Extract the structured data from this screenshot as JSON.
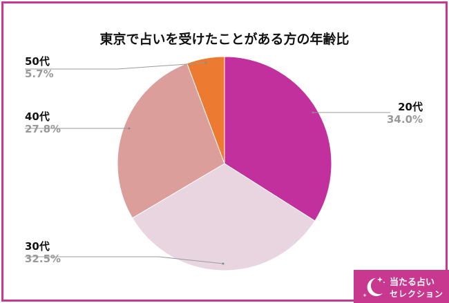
{
  "chart_data": {
    "type": "pie",
    "title": "東京で占いを受けたことがある方の年齢比",
    "start": "top",
    "direction": "clockwise",
    "slices": [
      {
        "label": "20代",
        "value": 34.0,
        "display": "34.0%",
        "color": "#c1309c"
      },
      {
        "label": "30代",
        "value": 32.5,
        "display": "32.5%",
        "color": "#e8d5e0"
      },
      {
        "label": "40代",
        "value": 27.8,
        "display": "27.8%",
        "color": "#dc9e9a"
      },
      {
        "label": "50代",
        "value": 5.7,
        "display": "5.7%",
        "color": "#ec7a30"
      }
    ]
  },
  "frame_color": "#c8388f",
  "logo": {
    "line1": "当たる占い",
    "line2": "セレクション",
    "icon": "crescent-moon-icon"
  }
}
